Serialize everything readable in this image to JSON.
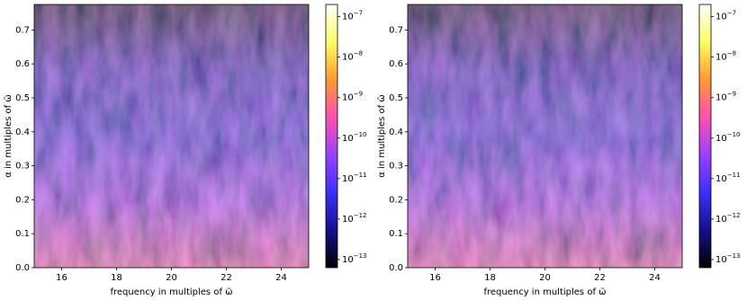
{
  "chart_data": [
    {
      "type": "heatmap",
      "xlabel": "frequency in multiples of ω̃",
      "ylabel": "α in multiples of ω̃",
      "xlim": [
        15,
        25
      ],
      "xticks": [
        16,
        18,
        20,
        22,
        24
      ],
      "ylim": [
        0,
        0.775
      ],
      "yticks": [
        {
          "value": 0,
          "label": "0.0"
        },
        0.1,
        0.2,
        0.3,
        0.4,
        0.5,
        0.6,
        0.7
      ],
      "colorbar_log": true,
      "clim": [
        6.3e-14,
        2e-07
      ],
      "colorbar_ticks": [
        {
          "value": 1e-13,
          "label": "10−13"
        },
        {
          "value": 1e-12,
          "label": "10−12"
        },
        {
          "value": 1e-11,
          "label": "10−11"
        },
        {
          "value": 1e-10,
          "label": "10−10"
        },
        {
          "value": 1e-09,
          "label": "10−9"
        },
        {
          "value": 1e-08,
          "label": "10−8"
        },
        {
          "value": 1e-07,
          "label": "10−7"
        }
      ],
      "colormap": [
        "#000000",
        "#15108c",
        "#3a30ff",
        "#9a40ff",
        "#ff50b0",
        "#ff9a30",
        "#ffff60",
        "#ffffff"
      ]
    },
    {
      "type": "heatmap",
      "xlabel": "frequency in multiples of ω̃",
      "ylabel": "α in multiples of ω̃",
      "xlim": [
        15,
        25
      ],
      "xticks": [
        16,
        18,
        20,
        22,
        24
      ],
      "ylim": [
        0,
        0.775
      ],
      "yticks": [
        {
          "value": 0,
          "label": "0.0"
        },
        0.1,
        0.2,
        0.3,
        0.4,
        0.5,
        0.6,
        0.7
      ],
      "colorbar_log": true,
      "clim": [
        6.3e-14,
        2e-07
      ],
      "colorbar_ticks": [
        {
          "value": 1e-13,
          "label": "10−13"
        },
        {
          "value": 1e-12,
          "label": "10−12"
        },
        {
          "value": 1e-11,
          "label": "10−11"
        },
        {
          "value": 1e-10,
          "label": "10−10"
        },
        {
          "value": 1e-09,
          "label": "10−9"
        },
        {
          "value": 1e-08,
          "label": "10−8"
        },
        {
          "value": 1e-07,
          "label": "10−7"
        }
      ],
      "colormap": [
        "#000000",
        "#15108c",
        "#3a30ff",
        "#9a40ff",
        "#ff50b0",
        "#ff9a30",
        "#ffff60",
        "#ffffff"
      ]
    }
  ]
}
